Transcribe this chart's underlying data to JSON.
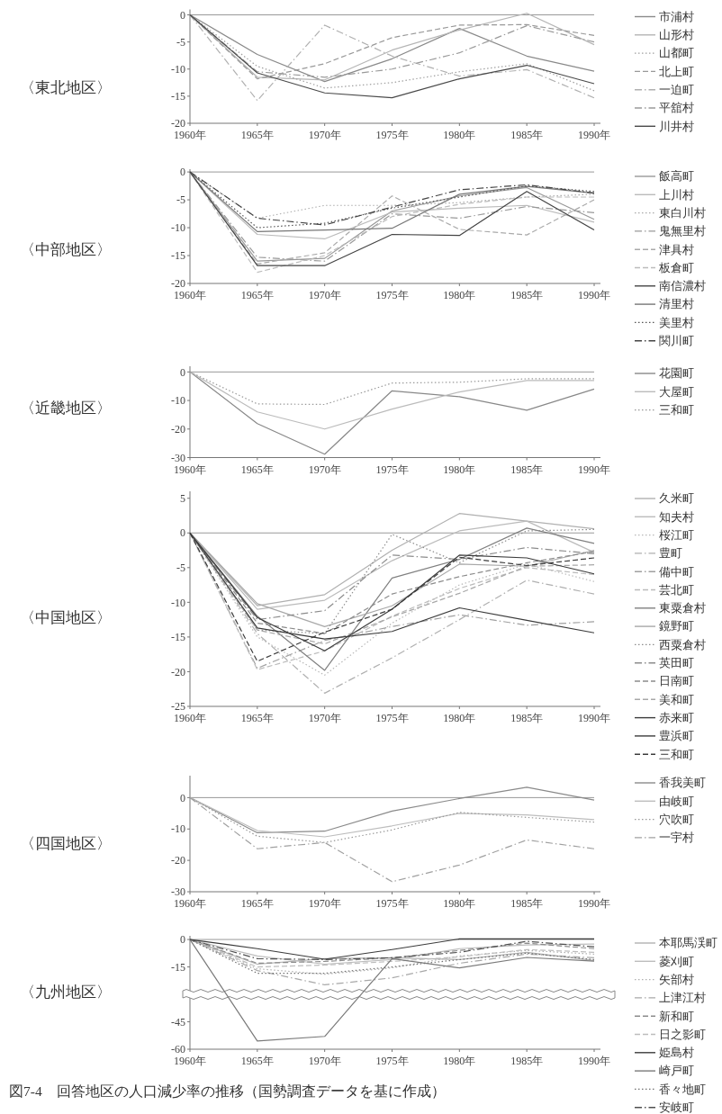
{
  "chart_data": [
    {
      "type": "line",
      "title": "〈東北地区〉",
      "categories": [
        "1960年",
        "1965年",
        "1970年",
        "1975年",
        "1980年",
        "1985年",
        "1990年"
      ],
      "ylim": [
        -20,
        1
      ],
      "yticks": [
        0,
        -5,
        -10,
        -15,
        -20
      ],
      "legend": "right",
      "ref_lines": [
        {
          "axis": "y",
          "value": 0,
          "color": "#999999"
        }
      ],
      "series": [
        {
          "name": "市浦村",
          "color": "#8a8a8a",
          "line_style": "solid",
          "values": [
            0,
            -7.3,
            -12.3,
            -8.1,
            -2.5,
            -7.6,
            -10.4
          ]
        },
        {
          "name": "山形村",
          "color": "#b5b5b5",
          "line_style": "solid",
          "values": [
            0,
            -11.5,
            -12.0,
            -6.5,
            -2.8,
            0.3,
            -5.5
          ]
        },
        {
          "name": "山都町",
          "color": "#a0a0a0",
          "line_style": "dotted",
          "values": [
            0,
            -9.5,
            -13.5,
            -12.5,
            -10.5,
            -9.0,
            -14.0
          ]
        },
        {
          "name": "北上町",
          "color": "#999999",
          "line_style": "dashed",
          "values": [
            0,
            -11.8,
            -9.0,
            -4.2,
            -1.9,
            -1.8,
            -3.8
          ]
        },
        {
          "name": "一迫町",
          "color": "#b0b0b0",
          "line_style": "dashdot",
          "values": [
            0,
            -15.8,
            -1.9,
            -7.6,
            -11.3,
            -10.1,
            -15.3
          ]
        },
        {
          "name": "平舘村",
          "color": "#9a9a9a",
          "line_style": "dashdot",
          "values": [
            0,
            -10.5,
            -11.5,
            -10.0,
            -7.0,
            -2.0,
            -5.0
          ]
        },
        {
          "name": "川井村",
          "color": "#4a4a4a",
          "line_style": "solid",
          "values": [
            0,
            -10.7,
            -14.4,
            -15.3,
            -11.8,
            -9.3,
            -12.7
          ]
        }
      ]
    },
    {
      "type": "line",
      "title": "〈中部地区〉",
      "categories": [
        "1960年",
        "1965年",
        "1970年",
        "1975年",
        "1980年",
        "1985年",
        "1990年"
      ],
      "ylim": [
        -20,
        0.5
      ],
      "yticks": [
        0,
        -5,
        -10,
        -15,
        -20
      ],
      "legend": "right",
      "ref_lines": [
        {
          "axis": "y",
          "value": 0,
          "color": "#999999"
        }
      ],
      "series": [
        {
          "name": "飯高町",
          "color": "#999999",
          "line_style": "solid",
          "values": [
            0,
            -16.0,
            -15.5,
            -7.0,
            -4.3,
            -2.8,
            -8.5
          ]
        },
        {
          "name": "上川村",
          "color": "#bbbbbb",
          "line_style": "solid",
          "values": [
            0,
            -11.2,
            -12.0,
            -7.2,
            -6.5,
            -6.0,
            -9.0
          ]
        },
        {
          "name": "東白川村",
          "color": "#aaaaaa",
          "line_style": "dotted",
          "values": [
            0,
            -8.3,
            -6.0,
            -6.0,
            -5.5,
            -4.5,
            -4.0
          ]
        },
        {
          "name": "鬼無里村",
          "color": "#999999",
          "line_style": "dashdot",
          "values": [
            0,
            -15.3,
            -16.0,
            -7.5,
            -8.3,
            -6.2,
            -7.3
          ]
        },
        {
          "name": "津具村",
          "color": "#aaaaaa",
          "line_style": "dashed",
          "values": [
            0,
            -16.5,
            -14.5,
            -4.3,
            -10.3,
            -11.3,
            -5.0
          ]
        },
        {
          "name": "板倉町",
          "color": "#bbbbbb",
          "line_style": "dashed",
          "values": [
            0,
            -18.0,
            -15.0,
            -8.0,
            -5.8,
            -4.5,
            -4.5
          ]
        },
        {
          "name": "南信濃村",
          "color": "#444444",
          "line_style": "solid",
          "values": [
            0,
            -16.8,
            -16.8,
            -11.2,
            -11.4,
            -3.5,
            -10.4
          ]
        },
        {
          "name": "清里村",
          "color": "#777777",
          "line_style": "solid",
          "values": [
            0,
            -10.7,
            -10.4,
            -10.1,
            -4.0,
            -2.6,
            -3.8
          ]
        },
        {
          "name": "美里村",
          "color": "#555555",
          "line_style": "dotted",
          "values": [
            0,
            -10.0,
            -9.2,
            -6.5,
            -4.5,
            -2.5,
            -3.5
          ]
        },
        {
          "name": "関川町",
          "color": "#444444",
          "line_style": "dashdot",
          "values": [
            0,
            -8.3,
            -9.5,
            -6.3,
            -3.2,
            -2.3,
            -3.8
          ]
        }
      ]
    },
    {
      "type": "line",
      "title": "〈近畿地区〉",
      "categories": [
        "1960年",
        "1965年",
        "1970年",
        "1975年",
        "1980年",
        "1985年",
        "1990年"
      ],
      "ylim": [
        -30,
        2
      ],
      "yticks": [
        0,
        -10,
        -20,
        -30
      ],
      "legend": "right",
      "ref_lines": [
        {
          "axis": "y",
          "value": 0,
          "color": "#999999"
        }
      ],
      "series": [
        {
          "name": "花園町",
          "color": "#888888",
          "line_style": "solid",
          "values": [
            0,
            -18.1,
            -28.8,
            -6.6,
            -8.7,
            -13.4,
            -6.0
          ]
        },
        {
          "name": "大屋町",
          "color": "#bbbbbb",
          "line_style": "solid",
          "values": [
            0,
            -14.0,
            -20.0,
            -13.0,
            -7.0,
            -3.0,
            -3.0
          ]
        },
        {
          "name": "三和町",
          "color": "#999999",
          "line_style": "dotted",
          "values": [
            0,
            -11.2,
            -11.4,
            -3.9,
            -3.6,
            -2.4,
            -2.4
          ]
        }
      ]
    },
    {
      "type": "line",
      "title": "〈中国地区〉",
      "categories": [
        "1960年",
        "1965年",
        "1970年",
        "1975年",
        "1980年",
        "1985年",
        "1990年"
      ],
      "ylim": [
        -25,
        6
      ],
      "yticks": [
        5,
        0,
        -5,
        -10,
        -15,
        -20,
        -25
      ],
      "legend": "right",
      "ref_lines": [
        {
          "axis": "y",
          "value": 0,
          "color": "#999999"
        }
      ],
      "series": [
        {
          "name": "久米町",
          "color": "#b0b0b0",
          "line_style": "solid",
          "values": [
            0,
            -10.5,
            -8.9,
            -2.5,
            2.8,
            1.7,
            0.6
          ]
        },
        {
          "name": "知夫村",
          "color": "#bbbbbb",
          "line_style": "solid",
          "values": [
            0,
            -11.0,
            -9.7,
            -4.0,
            0.3,
            1.7,
            -2.8
          ]
        },
        {
          "name": "桜江町",
          "color": "#b8b8b8",
          "line_style": "dotted",
          "values": [
            0,
            -15.0,
            -20.5,
            -13.0,
            -7.5,
            -4.5,
            -7.0
          ]
        },
        {
          "name": "豊町",
          "color": "#b0b0b0",
          "line_style": "dashdot",
          "values": [
            0,
            -14.5,
            -23.1,
            -18.0,
            -12.5,
            -6.8,
            -8.8
          ]
        },
        {
          "name": "備中町",
          "color": "#a0a0a0",
          "line_style": "dashdot",
          "values": [
            0,
            -19.5,
            -15.5,
            -13.5,
            -11.8,
            -13.3,
            -12.8
          ]
        },
        {
          "name": "芸北町",
          "color": "#bbbbbb",
          "line_style": "dashed",
          "values": [
            0,
            -19.7,
            -17.0,
            -12.0,
            -8.0,
            -5.0,
            -6.0
          ]
        },
        {
          "name": "東粟倉村",
          "color": "#808080",
          "line_style": "solid",
          "values": [
            0,
            -12.0,
            -19.8,
            -6.5,
            -3.8,
            0.7,
            -1.5
          ]
        },
        {
          "name": "鏡野町",
          "color": "#a8a8a8",
          "line_style": "solid",
          "values": [
            0,
            -10.2,
            -13.5,
            -10.5,
            -4.5,
            -4.8,
            -2.5
          ]
        },
        {
          "name": "西粟倉村",
          "color": "#8c8c8c",
          "line_style": "dotted",
          "values": [
            0,
            -14.0,
            -14.5,
            -0.2,
            -4.3,
            0.3,
            0.5
          ]
        },
        {
          "name": "英田町",
          "color": "#8c8c8c",
          "line_style": "dashdot",
          "values": [
            0,
            -12.5,
            -11.2,
            -3.2,
            -3.8,
            -2.1,
            -3.0
          ]
        },
        {
          "name": "日南町",
          "color": "#8c8c8c",
          "line_style": "dashed",
          "values": [
            0,
            -13.0,
            -14.5,
            -8.8,
            -6.3,
            -4.3,
            -2.7
          ]
        },
        {
          "name": "美和町",
          "color": "#a8a8a8",
          "line_style": "dashed",
          "values": [
            0,
            -14.0,
            -16.0,
            -12.1,
            -8.7,
            -4.8,
            -4.6
          ]
        },
        {
          "name": "赤来町",
          "color": "#3c3c3c",
          "line_style": "solid",
          "values": [
            0,
            -13.7,
            -15.3,
            -14.2,
            -10.8,
            -12.6,
            -14.4
          ]
        },
        {
          "name": "豊浜町",
          "color": "#3c3c3c",
          "line_style": "solid",
          "values": [
            0,
            -12.2,
            -17.0,
            -11.0,
            -3.2,
            -3.6,
            -5.9
          ]
        },
        {
          "name": "三和町",
          "color": "#3c3c3c",
          "line_style": "dashed",
          "values": [
            0,
            -18.5,
            -14.3,
            -11.0,
            -3.5,
            -4.7,
            -3.6
          ]
        }
      ]
    },
    {
      "type": "line",
      "title": "〈四国地区〉",
      "categories": [
        "1960年",
        "1965年",
        "1970年",
        "1975年",
        "1980年",
        "1985年",
        "1990年"
      ],
      "ylim": [
        -30,
        7
      ],
      "yticks": [
        0,
        -10,
        -20,
        -30
      ],
      "legend": "right",
      "ref_lines": [
        {
          "axis": "y",
          "value": 0,
          "color": "#999999"
        }
      ],
      "series": [
        {
          "name": "香我美町",
          "color": "#8a8a8a",
          "line_style": "solid",
          "values": [
            0,
            -11.2,
            -10.7,
            -4.3,
            -0.3,
            3.3,
            -0.8
          ]
        },
        {
          "name": "由岐町",
          "color": "#bdbdbd",
          "line_style": "solid",
          "values": [
            0,
            -10.5,
            -12.5,
            -9.0,
            -5.0,
            -5.5,
            -7.0
          ]
        },
        {
          "name": "穴吹町",
          "color": "#9a9a9a",
          "line_style": "dotted",
          "values": [
            0,
            -12.3,
            -14.3,
            -10.3,
            -4.7,
            -6.3,
            -7.8
          ]
        },
        {
          "name": "一宇村",
          "color": "#a0a0a0",
          "line_style": "dashdot",
          "values": [
            0,
            -16.3,
            -14.3,
            -26.8,
            -21.5,
            -13.5,
            -16.3
          ]
        }
      ]
    },
    {
      "type": "line",
      "title": "〈九州地区〉",
      "categories": [
        "1960年",
        "1965年",
        "1970年",
        "1975年",
        "1980年",
        "1985年",
        "1990年"
      ],
      "ylim": [
        -60,
        2
      ],
      "yticks": [
        0,
        -15,
        -45,
        -60
      ],
      "legend": "right",
      "ref_lines": [
        {
          "axis": "y",
          "value": 0,
          "color": "#999999"
        }
      ],
      "annotations": [
        "図7-4　回答地区の人口減少率の推移（国勢調査データを基に作成）"
      ],
      "series": [
        {
          "name": "本耶馬渓町",
          "color": "#b0b0b0",
          "line_style": "solid",
          "values": [
            0,
            -13.5,
            -10.5,
            -10.0,
            -11.0,
            -7.0,
            -11.5
          ]
        },
        {
          "name": "菱刈町",
          "color": "#bdbdbd",
          "line_style": "solid",
          "values": [
            0,
            -9.0,
            -13.5,
            -11.0,
            -5.0,
            -3.0,
            -2.5
          ]
        },
        {
          "name": "矢部村",
          "color": "#b0b0b0",
          "line_style": "dotted",
          "values": [
            0,
            -16.0,
            -19.0,
            -15.5,
            -9.0,
            -6.0,
            -8.0
          ]
        },
        {
          "name": "上津江村",
          "color": "#a8a8a8",
          "line_style": "dashdot",
          "values": [
            0,
            -17.0,
            -24.8,
            -21.0,
            -13.0,
            -8.0,
            -10.0
          ]
        },
        {
          "name": "新和町",
          "color": "#8c8c8c",
          "line_style": "dashed",
          "values": [
            0,
            -13.0,
            -12.0,
            -10.0,
            -6.0,
            -2.0,
            -5.0
          ]
        },
        {
          "name": "日之影町",
          "color": "#bdbdbd",
          "line_style": "dashed",
          "values": [
            0,
            -15.0,
            -14.0,
            -12.0,
            -9.5,
            -5.5,
            -7.0
          ]
        },
        {
          "name": "姫島村",
          "color": "#3c3c3c",
          "line_style": "solid",
          "values": [
            0,
            -5.0,
            -10.8,
            -5.5,
            0.3,
            0.3,
            0.3
          ]
        },
        {
          "name": "崎戸町",
          "color": "#7a7a7a",
          "line_style": "solid",
          "values": [
            0,
            -55.5,
            -53.0,
            -10.5,
            -15.5,
            -9.8,
            -11.8
          ]
        },
        {
          "name": "香々地町",
          "color": "#707070",
          "line_style": "dotted",
          "values": [
            0,
            -18.5,
            -18.5,
            -15.0,
            -11.0,
            -7.5,
            -11.0
          ]
        },
        {
          "name": "安岐町",
          "color": "#505050",
          "line_style": "dashdot",
          "values": [
            0,
            -10.5,
            -11.0,
            -10.0,
            -7.0,
            -1.0,
            -4.0
          ]
        }
      ]
    }
  ]
}
